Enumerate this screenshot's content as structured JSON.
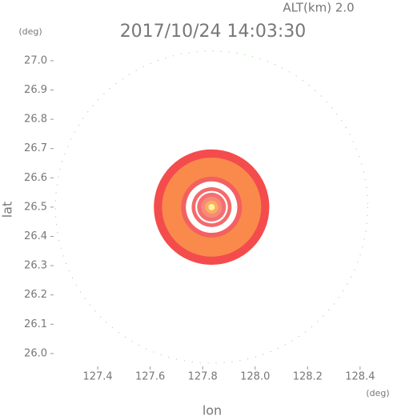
{
  "chart_data": {
    "type": "ring-map",
    "title": "2017/10/24 14:03:30",
    "subtitle": "ALT(km)  2.0",
    "x_label": "lon",
    "y_label": "lat",
    "x_unit": "(deg)",
    "y_unit": "(deg)",
    "xlim": [
      127.232,
      128.44
    ],
    "ylim": [
      25.956,
      27.038
    ],
    "xticks": [
      {
        "value": 127.4,
        "label": "127.4"
      },
      {
        "value": 127.6,
        "label": "127.6"
      },
      {
        "value": 127.8,
        "label": "127.8"
      },
      {
        "value": 128.0,
        "label": "128.0"
      },
      {
        "value": 128.2,
        "label": "128.2"
      },
      {
        "value": 128.4,
        "label": "128.4"
      }
    ],
    "yticks": [
      {
        "value": 26.0,
        "label": "26.0"
      },
      {
        "value": 26.1,
        "label": "26.1"
      },
      {
        "value": 26.2,
        "label": "26.2"
      },
      {
        "value": 26.3,
        "label": "26.3"
      },
      {
        "value": 26.4,
        "label": "26.4"
      },
      {
        "value": 26.5,
        "label": "26.5"
      },
      {
        "value": 26.6,
        "label": "26.6"
      },
      {
        "value": 26.7,
        "label": "26.7"
      },
      {
        "value": 26.8,
        "label": "26.8"
      },
      {
        "value": 26.9,
        "label": "26.9"
      },
      {
        "value": 27.0,
        "label": "27.0"
      }
    ],
    "center": [
      127.834,
      26.5
    ],
    "range_ring": {
      "radius": 0.595,
      "color": "#8fcf7f"
    },
    "rings": [
      {
        "radius": 0.22,
        "color": "#f44c4c"
      },
      {
        "radius": 0.189,
        "color": "#f98a4c"
      },
      {
        "radius": 0.116,
        "color": "#f46060"
      },
      {
        "radius": 0.098,
        "color": "#ffffff"
      },
      {
        "radius": 0.076,
        "color": "#f46a6a"
      },
      {
        "radius": 0.062,
        "color": "#ffffff"
      },
      {
        "radius": 0.055,
        "color": "#f47070"
      },
      {
        "radius": 0.04,
        "color": "#f98a7a"
      },
      {
        "radius": 0.025,
        "color": "#f9b060"
      },
      {
        "radius": 0.012,
        "color": "#fff4a0"
      }
    ]
  }
}
